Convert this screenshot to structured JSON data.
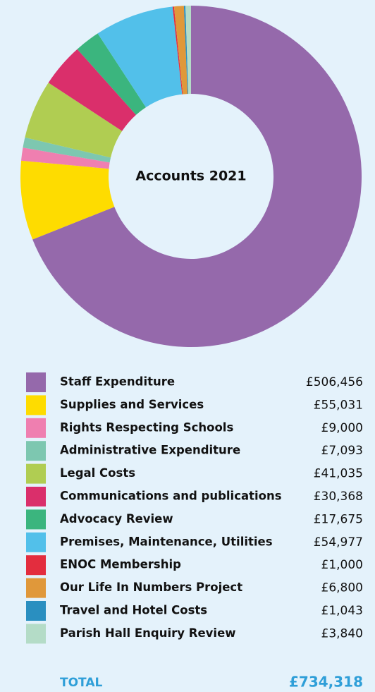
{
  "chart_data": {
    "type": "donut",
    "title": "Accounts 2021",
    "categories": [
      "Staff Expenditure",
      "Supplies and Services",
      "Rights Respecting Schools",
      "Administrative Expenditure",
      "Legal Costs",
      "Communications and publications",
      "Advocacy Review",
      "Premises, Maintenance, Utilities",
      "ENOC Membership",
      "Our Life In Numbers Project",
      "Travel and Hotel Costs",
      "Parish Hall Enquiry Review"
    ],
    "values": [
      506456,
      55031,
      9000,
      7093,
      41035,
      30368,
      17675,
      54977,
      1000,
      6800,
      1043,
      3840
    ],
    "value_labels": [
      "£506,456",
      "£55,031",
      "£9,000",
      "£7,093",
      "£41,035",
      "£30,368",
      "£17,675",
      "£54,977",
      "£1,000",
      "£6,800",
      "£1,043",
      "£3,840"
    ],
    "colors": [
      "#9569ab",
      "#fedc00",
      "#ef7fb0",
      "#7dc7b0",
      "#b0cd52",
      "#da2f6b",
      "#3bb57e",
      "#52c0ea",
      "#e32d3e",
      "#e0983a",
      "#2a8fc0",
      "#b4dcc7"
    ],
    "total": {
      "name": "TOTAL",
      "value": 734318,
      "label": "£734,318"
    }
  }
}
